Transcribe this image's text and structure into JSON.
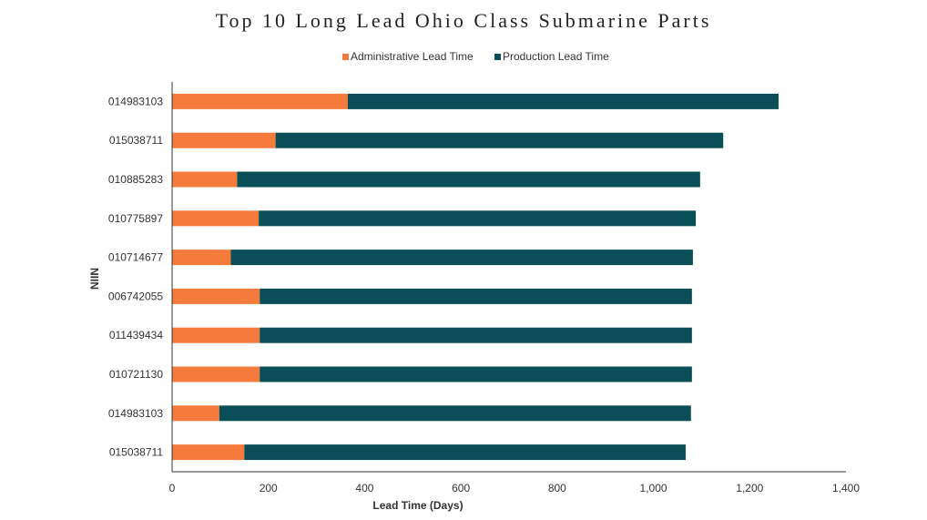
{
  "chart_data": {
    "type": "bar",
    "orientation": "horizontal",
    "stacked": true,
    "title": "Top 10 Long Lead Ohio Class Submarine Parts",
    "xlabel": "Lead Time (Days)",
    "ylabel": "NIIN",
    "xlim": [
      0,
      1400
    ],
    "xticks": [
      0,
      200,
      400,
      600,
      800,
      1000,
      1200,
      1400
    ],
    "xtick_labels": [
      "0",
      "200",
      "400",
      "600",
      "800",
      "1,000",
      "1,200",
      "1,400"
    ],
    "categories": [
      "014983103",
      "015038711",
      "010885283",
      "010775897",
      "010714677",
      "006742055",
      "011439434",
      "010721130",
      "014983103",
      "015038711"
    ],
    "series": [
      {
        "name": "Administrative Lead Time",
        "color": "#f47b3b",
        "values": [
          365,
          215,
          135,
          180,
          122,
          182,
          182,
          182,
          98,
          150
        ]
      },
      {
        "name": "Production Lead Time",
        "color": "#0a4f57",
        "values": [
          895,
          930,
          962,
          908,
          960,
          898,
          898,
          898,
          980,
          917
        ]
      }
    ],
    "legend_position": "top",
    "grid": false
  }
}
